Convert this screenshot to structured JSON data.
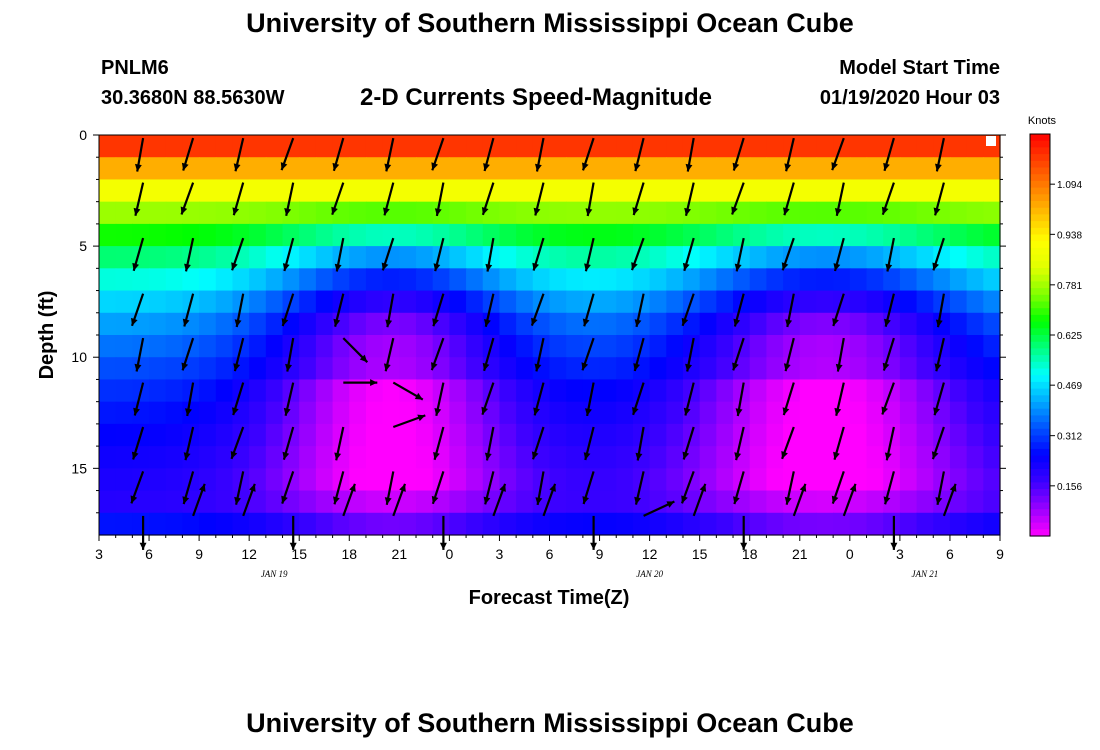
{
  "header": {
    "title": "University of Southern Mississippi Ocean Cube",
    "station_id": "PNLM6",
    "station_coords": "30.3680N 88.5630W",
    "chart_title": "2-D Currents Speed-Magnitude",
    "model_start_label": "Model Start Time",
    "model_start_value": "01/19/2020 Hour 03"
  },
  "footer": {
    "title": "University of Southern Mississippi Ocean Cube"
  },
  "colors": {
    "vector": "#000000",
    "scale": [
      "#ff00ff",
      "#9b00ff",
      "#3c00ff",
      "#0000ff",
      "#0050ff",
      "#00a8ff",
      "#00ffff",
      "#00ff80",
      "#00ff00",
      "#80ff00",
      "#e0ff00",
      "#ffff00",
      "#ffc000",
      "#ff8000",
      "#ff4000",
      "#ff0000"
    ]
  },
  "chart_data": {
    "type": "heatmap",
    "title": "2-D Currents Speed-Magnitude",
    "xlabel": "Forecast Time(Z)",
    "ylabel": "Depth (ft)",
    "x_hours": [
      0,
      3,
      6,
      9,
      12,
      15,
      18,
      21,
      24,
      27,
      30,
      33,
      36,
      39,
      42,
      45,
      48,
      51,
      54
    ],
    "x_tick_labels": [
      "3",
      "6",
      "9",
      "12",
      "15",
      "18",
      "21",
      "0",
      "3",
      "6",
      "9",
      "12",
      "15",
      "18",
      "21",
      "0",
      "3",
      "6",
      "9"
    ],
    "date_labels": [
      {
        "text": "JAN 19",
        "hour": 10.5
      },
      {
        "text": "JAN 20",
        "hour": 33
      },
      {
        "text": "JAN 21",
        "hour": 49.5
      }
    ],
    "ylim": [
      0,
      18
    ],
    "y_ticks": [
      0,
      5,
      10,
      15
    ],
    "depth_levels_ft": [
      0.5,
      1.5,
      2.5,
      3.5,
      4.5,
      5.5,
      6.5,
      7.5,
      8.5,
      9.5,
      10.5,
      11.5,
      12.5,
      13.5,
      14.5,
      15.5,
      16.5,
      17.5
    ],
    "colorbar": {
      "title": "Knots",
      "min": 0,
      "max": 1.25,
      "ticks": [
        "1.094",
        "0.938",
        "0.781",
        "0.625",
        "0.469",
        "0.312",
        "0.156"
      ],
      "tick_values": [
        1.094,
        0.938,
        0.781,
        0.625,
        0.469,
        0.312,
        0.156
      ]
    },
    "speed_profile": {
      "surface_knots": 1.15,
      "slack_periods": [
        {
          "center_hour": 17.5,
          "half_width_hours": 7.5,
          "min_knots": 0.03
        },
        {
          "center_hour": 43.5,
          "half_width_hours": 9,
          "min_knots": 0.0
        }
      ]
    },
    "vectors": {
      "hours": [
        3,
        6,
        9,
        12,
        15,
        18,
        21,
        24,
        27,
        30,
        33,
        36,
        39,
        42,
        45,
        48,
        51
      ],
      "depths_ft": [
        0.5,
        2.5,
        5,
        7.5,
        9.5,
        11.5,
        13.5,
        15.5,
        17.5
      ],
      "default_direction_deg": 195,
      "deep_direction_deg": 20,
      "special": [
        {
          "hour": 15,
          "depth": 9.5,
          "direction_deg": 135
        },
        {
          "hour": 15,
          "depth": 11.5,
          "direction_deg": 90
        },
        {
          "hour": 18,
          "depth": 11.5,
          "direction_deg": 120
        },
        {
          "hour": 18,
          "depth": 13.5,
          "direction_deg": 70
        },
        {
          "hour": 33,
          "depth": 17.5,
          "direction_deg": 65
        }
      ]
    }
  }
}
